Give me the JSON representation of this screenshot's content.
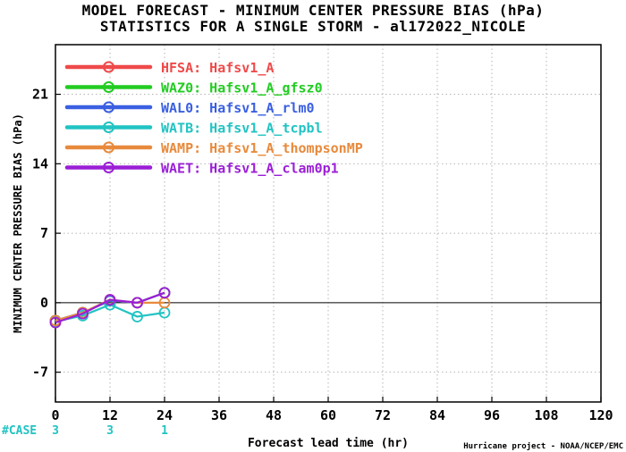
{
  "title_lines": [
    "MODEL FORECAST - MINIMUM CENTER PRESSURE BIAS (hPa)",
    "STATISTICS FOR A SINGLE STORM - al172022_NICOLE"
  ],
  "footer_credit": "Hurricane project - NOAA/NCEP/EMC",
  "case_label": "#CASE",
  "case_counts": [
    {
      "x": 0,
      "n": "3"
    },
    {
      "x": 12,
      "n": "3"
    },
    {
      "x": 24,
      "n": "1"
    }
  ],
  "colors": {
    "HFSA": "#ef4a4a",
    "WAZ0": "#22cc22",
    "WAL0": "#3a5fe0",
    "WATB": "#22c3c3",
    "WAMP": "#e88a3c",
    "WAET": "#9b1fd6",
    "case": "#22c3c3",
    "grid": "#b5b5b5",
    "zero_line": "#000000"
  },
  "chart_data": {
    "type": "line",
    "xlabel": "Forecast lead time (hr)",
    "ylabel": "MINIMUM CENTER PRESSURE BIAS (hPa)",
    "xlim": [
      0,
      120
    ],
    "ylim": [
      -10,
      26
    ],
    "xticks": [
      0,
      12,
      24,
      36,
      48,
      60,
      72,
      84,
      96,
      108,
      120
    ],
    "yticks": [
      -7,
      0,
      7,
      14,
      21
    ],
    "grid": true,
    "legend_position": "top-left",
    "series": [
      {
        "name": "HFSA: Hafsv1_A",
        "key": "HFSA",
        "x": [
          0,
          6,
          12,
          18,
          24
        ],
        "y": [
          -1.8,
          -1.0,
          0.2,
          0.0,
          1.0
        ]
      },
      {
        "name": "WAZ0: Hafsv1_A_gfsz0",
        "key": "WAZ0",
        "x": [
          0,
          6,
          12,
          18,
          24
        ],
        "y": [
          -1.8,
          -1.0,
          0.2,
          0.0,
          1.0
        ]
      },
      {
        "name": "WAL0: Hafsv1_A_rlm0",
        "key": "WAL0",
        "x": [
          0,
          6,
          12,
          18,
          24
        ],
        "y": [
          -1.8,
          -1.0,
          0.2,
          0.0,
          1.0
        ]
      },
      {
        "name": "WATB: Hafsv1_A_tcpbl",
        "key": "WATB",
        "x": [
          0,
          6,
          12,
          18,
          24
        ],
        "y": [
          -1.9,
          -1.3,
          -0.2,
          -1.4,
          -1.0
        ]
      },
      {
        "name": "WAMP: Hafsv1_A_thompsonMP",
        "key": "WAMP",
        "x": [
          0,
          6,
          12,
          18,
          24
        ],
        "y": [
          -1.8,
          -1.0,
          0.3,
          0.0,
          0.0
        ]
      },
      {
        "name": "WAET: Hafsv1_A_clam0p1",
        "key": "WAET",
        "x": [
          0,
          6,
          12,
          18,
          24
        ],
        "y": [
          -2.0,
          -1.1,
          0.3,
          0.0,
          1.0
        ]
      }
    ]
  }
}
